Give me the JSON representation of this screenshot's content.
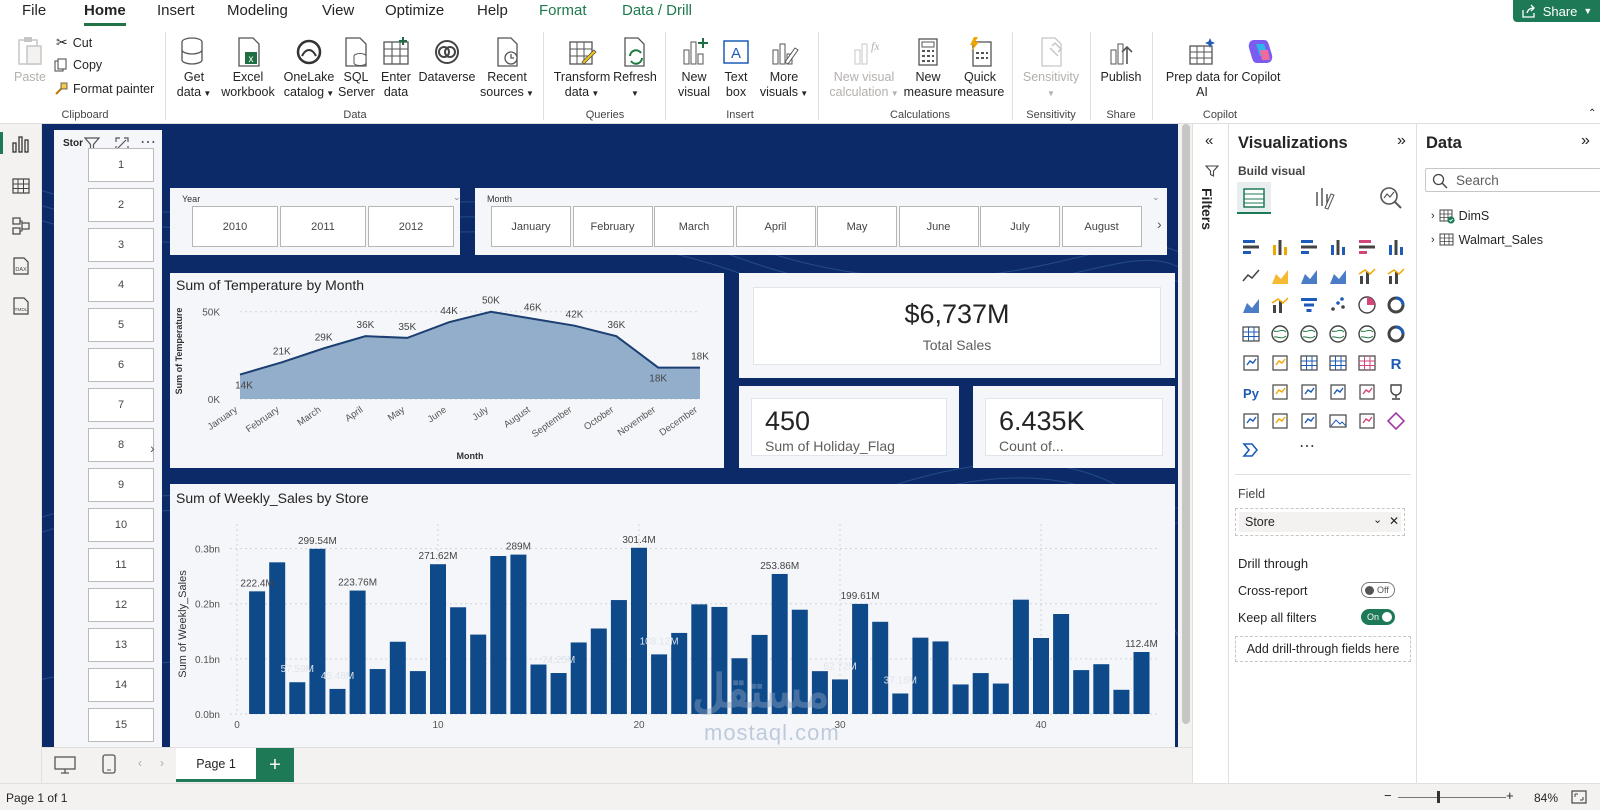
{
  "menu": {
    "tabs": [
      "File",
      "Home",
      "Insert",
      "Modeling",
      "View",
      "Optimize",
      "Help",
      "Format",
      "Data / Drill"
    ],
    "share": "Share"
  },
  "ribbon": {
    "paste": "Paste",
    "cut": "Cut",
    "copy": "Copy",
    "format_painter": "Format painter",
    "get_data": [
      "Get",
      "data"
    ],
    "excel": [
      "Excel",
      "workbook"
    ],
    "onelake": [
      "OneLake",
      "catalog"
    ],
    "sql": [
      "SQL",
      "Server"
    ],
    "enter": [
      "Enter",
      "data"
    ],
    "dataverse": "Dataverse",
    "recent": [
      "Recent",
      "sources"
    ],
    "transform": [
      "Transform",
      "data"
    ],
    "refresh": "Refresh",
    "new_visual": [
      "New",
      "visual"
    ],
    "text_box": [
      "Text",
      "box"
    ],
    "more_visuals": [
      "More",
      "visuals"
    ],
    "new_visual_calc": [
      "New visual",
      "calculation"
    ],
    "new_measure": [
      "New",
      "measure"
    ],
    "quick_measure": [
      "Quick",
      "measure"
    ],
    "sensitivity": "Sensitivity",
    "publish": "Publish",
    "copilot": [
      "Prep data for",
      "AI"
    ],
    "copilot_label": "Copilot",
    "groups": [
      "Clipboard",
      "Data",
      "Queries",
      "Insert",
      "Calculations",
      "Sensitivity",
      "Share",
      "Copilot"
    ]
  },
  "report": {
    "store_slicer_title": "Stor",
    "stores": [
      "1",
      "2",
      "3",
      "4",
      "5",
      "6",
      "7",
      "8",
      "9",
      "10",
      "11",
      "12",
      "13",
      "14",
      "15"
    ],
    "year_title": "Year",
    "years": [
      "2010",
      "2011",
      "2012"
    ],
    "month_title": "Month",
    "months": [
      "January",
      "February",
      "March",
      "April",
      "May",
      "June",
      "July",
      "August"
    ],
    "total_sales": {
      "value": "$6,737M",
      "label": "Total Sales"
    },
    "holiday": {
      "value": "450",
      "label": "Sum of Holiday_Flag"
    },
    "count": {
      "value": "6.435K",
      "label": "Count of..."
    },
    "temp_title": "Sum of Temperature by Month",
    "sales_title": "Sum of Weekly_Sales by Store"
  },
  "chart_data": [
    {
      "type": "area",
      "title": "Sum of Temperature by Month",
      "xlabel": "Month",
      "ylabel": "Sum of Temperature",
      "categories": [
        "January",
        "February",
        "March",
        "April",
        "May",
        "June",
        "July",
        "August",
        "September",
        "October",
        "November",
        "December"
      ],
      "values": [
        14000,
        21000,
        29000,
        36000,
        35000,
        44000,
        50000,
        46000,
        42000,
        36000,
        18000,
        18000
      ],
      "data_labels": [
        "14K",
        "21K",
        "29K",
        "36K",
        "35K",
        "44K",
        "50K",
        "46K",
        "42K",
        "36K",
        "18K",
        "18K"
      ],
      "ylim": [
        0,
        55000
      ],
      "yticks": [
        {
          "v": 0,
          "t": "0K"
        },
        {
          "v": 50000,
          "t": "50K"
        }
      ]
    },
    {
      "type": "bar",
      "title": "Sum of Weekly_Sales by Store",
      "ylabel": "Sum of Weekly_Sales",
      "x": [
        1,
        2,
        3,
        4,
        5,
        6,
        7,
        8,
        9,
        10,
        11,
        12,
        13,
        14,
        15,
        16,
        17,
        18,
        19,
        20,
        21,
        22,
        23,
        24,
        25,
        26,
        27,
        28,
        29,
        30,
        31,
        32,
        33,
        34,
        35,
        36,
        37,
        38,
        39,
        40,
        41,
        42,
        43,
        44,
        45
      ],
      "values": [
        0.2224,
        0.275,
        0.0576,
        0.2995,
        0.0455,
        0.2238,
        0.0815,
        0.131,
        0.0778,
        0.2716,
        0.1935,
        0.144,
        0.2865,
        0.289,
        0.0897,
        0.0743,
        0.1297,
        0.155,
        0.2066,
        0.3014,
        0.1081,
        0.147,
        0.1988,
        0.1941,
        0.1011,
        0.1434,
        0.2539,
        0.1891,
        0.0777,
        0.0627,
        0.1996,
        0.1672,
        0.0372,
        0.1384,
        0.1316,
        0.0536,
        0.0742,
        0.0552,
        0.2073,
        0.1378,
        0.1813,
        0.0796,
        0.0903,
        0.0439,
        0.1124
      ],
      "data_labels": [
        {
          "i": 0,
          "t": "222.4M"
        },
        {
          "i": 2,
          "t": "57.59M"
        },
        {
          "i": 3,
          "t": "299.54M"
        },
        {
          "i": 4,
          "t": "45.48M"
        },
        {
          "i": 5,
          "t": "223.76M"
        },
        {
          "i": 9,
          "t": "271.62M"
        },
        {
          "i": 13,
          "t": "289M"
        },
        {
          "i": 15,
          "t": "74.25M"
        },
        {
          "i": 19,
          "t": "301.4M"
        },
        {
          "i": 20,
          "t": "108.12M"
        },
        {
          "i": 26,
          "t": "253.86M"
        },
        {
          "i": 29,
          "t": "62.72M"
        },
        {
          "i": 30,
          "t": "199.61M"
        },
        {
          "i": 32,
          "t": "37.16M"
        },
        {
          "i": 44,
          "t": "112.4M"
        }
      ],
      "ylim": [
        0,
        0.33
      ],
      "yticks": [
        {
          "v": 0,
          "t": "0.0bn"
        },
        {
          "v": 0.1,
          "t": "0.1bn"
        },
        {
          "v": 0.2,
          "t": "0.2bn"
        },
        {
          "v": 0.3,
          "t": "0.3bn"
        }
      ],
      "xticks": [
        {
          "v": 0,
          "t": "0"
        },
        {
          "v": 10,
          "t": "10"
        },
        {
          "v": 20,
          "t": "20"
        },
        {
          "v": 30,
          "t": "30"
        },
        {
          "v": 40,
          "t": "40"
        }
      ]
    }
  ],
  "filters_label": "Filters",
  "viz": {
    "title": "Visualizations",
    "build": "Build visual",
    "field_label": "Field",
    "field_value": "Store",
    "drill": "Drill through",
    "cross": "Cross-report",
    "cross_state": "Off",
    "keep": "Keep all filters",
    "keep_state": "On",
    "add_drill": "Add drill-through fields here"
  },
  "data_pane": {
    "title": "Data",
    "search": "Search",
    "tables": [
      "DimS",
      "Walmart_Sales"
    ]
  },
  "bottom": {
    "page_tab": "Page 1"
  },
  "status": {
    "page": "Page 1 of 1",
    "zoom": "84%"
  },
  "watermark": {
    "ar": "مستقل",
    "en": "mostaql.com"
  },
  "colors": {
    "accent": "#1e7a56",
    "bar": "#0e4a8a",
    "area": "#93aecb",
    "line": "#1b3f72",
    "page_bg": "#0d2a68"
  }
}
